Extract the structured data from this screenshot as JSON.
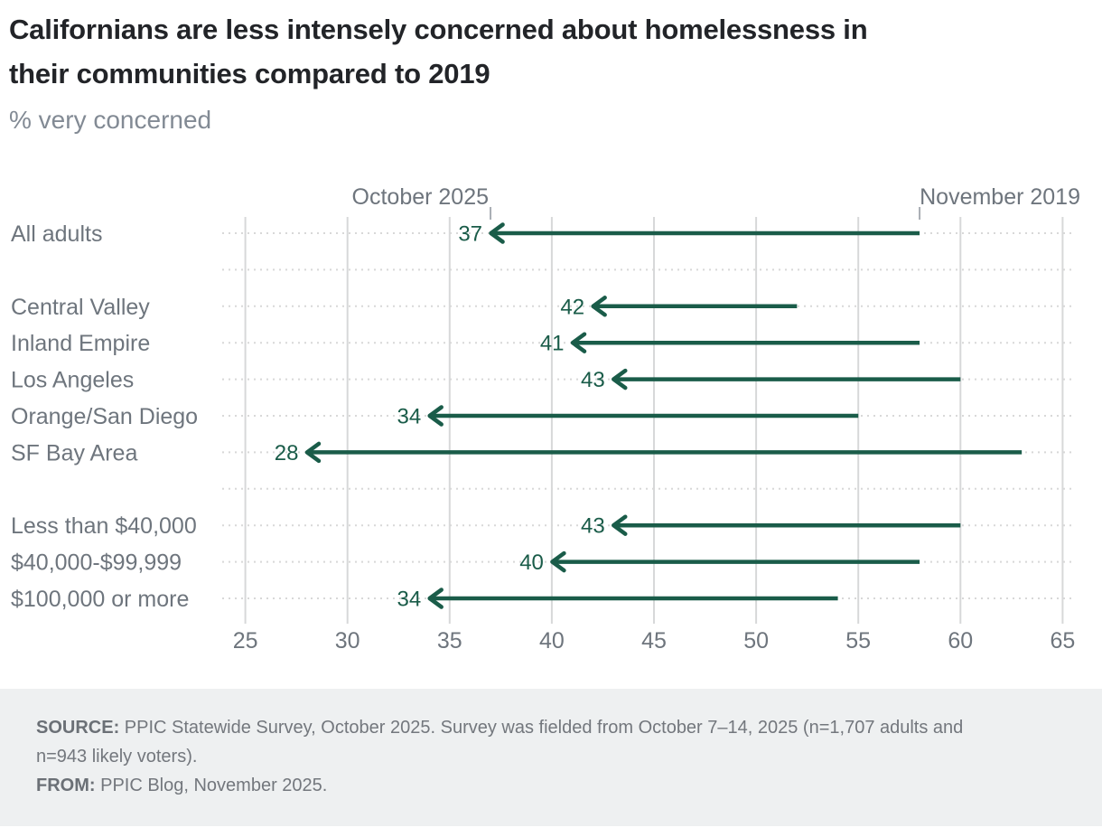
{
  "header": {
    "title_lines": [
      "Californians are less intensely concerned about homelessness in",
      "their communities compared to 2019"
    ],
    "subtitle": "% very concerned"
  },
  "chart_data": {
    "type": "dumbbell-arrow",
    "title": "Californians are less intensely concerned about homelessness in their communities compared to 2019",
    "value_note": "% very concerned",
    "categories": [
      "All adults",
      "Central Valley",
      "Inland Empire",
      "Los Angeles",
      "Orange/San Diego",
      "SF Bay Area",
      "Less than $40,000",
      "$40,000-$99,999",
      "$100,000 or more"
    ],
    "series": [
      {
        "name": "October 2025",
        "values": [
          37,
          42,
          41,
          43,
          34,
          28,
          43,
          40,
          34
        ]
      },
      {
        "name": "November 2019",
        "values": [
          58,
          52,
          58,
          60,
          55,
          63,
          60,
          58,
          54
        ]
      }
    ],
    "group_gaps_after": [
      "All adults",
      "SF Bay Area"
    ],
    "x_axis": {
      "min": 25,
      "max": 65,
      "ticks": [
        25,
        30,
        35,
        40,
        45,
        50,
        55,
        60,
        65
      ]
    },
    "annotations": [
      {
        "label": "October 2025",
        "at_value": 37
      },
      {
        "label": "November 2019",
        "at_value": 58
      }
    ],
    "grid": "on",
    "legend": "none",
    "colors": {
      "arrow": "#1A5C49",
      "gridline": "#D7D8D9",
      "row_guide": "#D8D8D8",
      "text_gray": "#6E757D",
      "annotation_tick": "#A9AEB4"
    }
  },
  "footer": {
    "source_label": "SOURCE:",
    "source_line1": "PPIC Statewide Survey, October 2025. Survey was fielded from October 7–14, 2025 (n=1,707 adults and",
    "source_line2": "n=943 likely voters).",
    "from_label": "FROM:",
    "from_text": "PPIC Blog, November 2025."
  }
}
